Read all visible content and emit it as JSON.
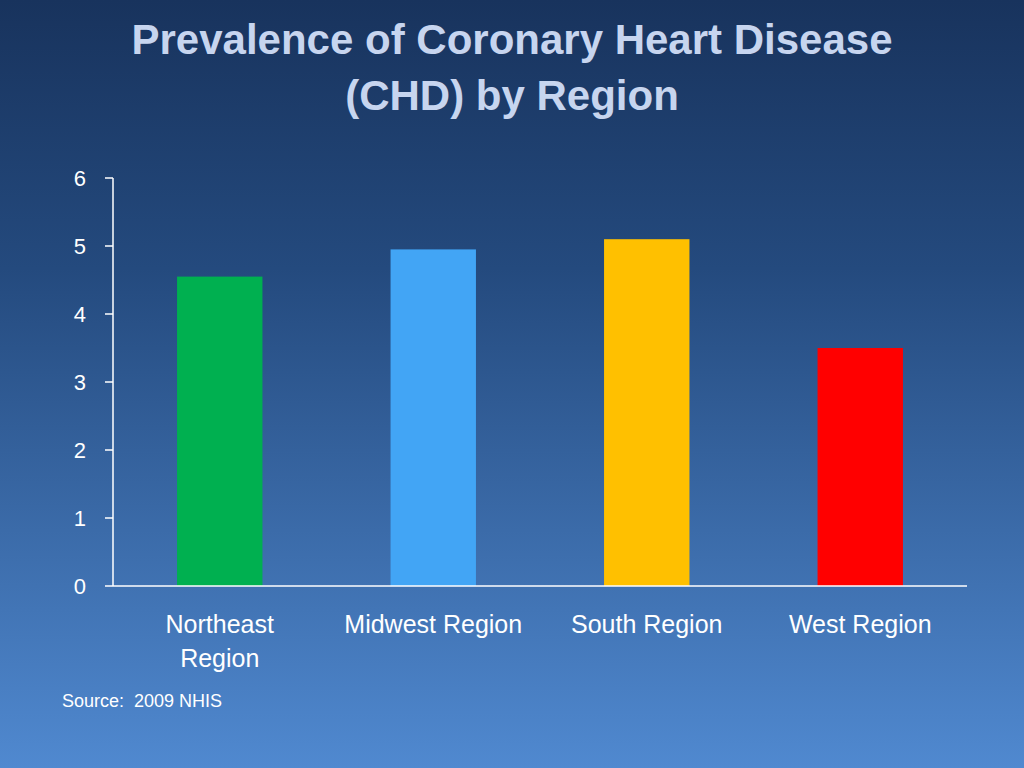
{
  "chart_data": {
    "type": "bar",
    "title": "Prevalence of Coronary Heart Disease (CHD) by Region",
    "categories": [
      "Northeast Region",
      "Midwest Region",
      "South Region",
      "West Region"
    ],
    "values": [
      4.55,
      4.95,
      5.1,
      3.5
    ],
    "colors": [
      "#00b050",
      "#42a5f5",
      "#ffc000",
      "#ff0000"
    ],
    "ylim": [
      0,
      6
    ],
    "yticks": [
      0,
      1,
      2,
      3,
      4,
      5,
      6
    ],
    "grid": false,
    "annotations": [
      "Source:  2009 NHIS"
    ]
  }
}
